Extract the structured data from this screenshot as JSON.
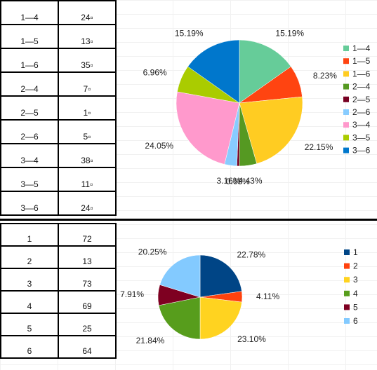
{
  "table_pairs": {
    "rows": [
      {
        "label": "1—4",
        "value": "24▫"
      },
      {
        "label": "1—5",
        "value": "13▫"
      },
      {
        "label": "1—6",
        "value": "35▫"
      },
      {
        "label": "2—4",
        "value": "7▫"
      },
      {
        "label": "2—5",
        "value": "1▫"
      },
      {
        "label": "2—6",
        "value": "5▫"
      },
      {
        "label": "3—4",
        "value": "38▫"
      },
      {
        "label": "3—5",
        "value": "11▫"
      },
      {
        "label": "3—6",
        "value": "24▫"
      }
    ]
  },
  "table_singles": {
    "rows": [
      {
        "label": "1",
        "value": "72"
      },
      {
        "label": "2",
        "value": "13"
      },
      {
        "label": "3",
        "value": "73"
      },
      {
        "label": "4",
        "value": "69"
      },
      {
        "label": "5",
        "value": "25"
      },
      {
        "label": "6",
        "value": "64"
      }
    ]
  },
  "chart_data": [
    {
      "type": "pie",
      "title": "",
      "legend": "right",
      "categories": [
        "1—4",
        "1—5",
        "1—6",
        "2—4",
        "2—5",
        "2—6",
        "3—4",
        "3—5",
        "3—6"
      ],
      "values": [
        24,
        13,
        35,
        7,
        1,
        5,
        38,
        11,
        24
      ],
      "percent_labels": [
        "15.19%",
        "8.23%",
        "22.15%",
        "4.43%",
        "0.63%",
        "3.16%",
        "24.05%",
        "6.96%",
        "15.19%"
      ],
      "colors": [
        "#66cc99",
        "#ff4411",
        "#ffcc22",
        "#559922",
        "#770022",
        "#88ccff",
        "#ff99cc",
        "#aacc00",
        "#0077cc"
      ]
    },
    {
      "type": "pie",
      "title": "",
      "legend": "right",
      "categories": [
        "1",
        "2",
        "3",
        "4",
        "5",
        "6"
      ],
      "values": [
        72,
        13,
        73,
        69,
        25,
        64
      ],
      "percent_labels": [
        "22.78%",
        "4.11%",
        "23.10%",
        "21.84%",
        "7.91%",
        "20.25%"
      ],
      "colors": [
        "#004586",
        "#ff420e",
        "#ffd320",
        "#579d1c",
        "#7e0021",
        "#83caff"
      ]
    }
  ]
}
